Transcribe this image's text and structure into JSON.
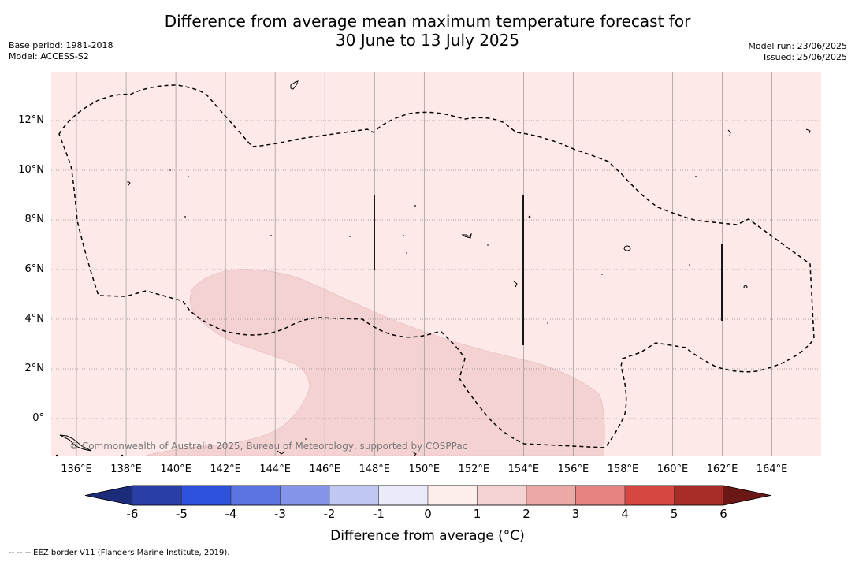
{
  "header": {
    "title_line1": "Difference from average mean maximum temperature forecast for",
    "title_line2": "30 June to 13 July 2025",
    "base_period": "Base period: 1981-2018",
    "model": "Model: ACCESS-S2",
    "model_run": "Model run: 23/06/2025",
    "issued": "Issued: 25/06/2025"
  },
  "map": {
    "lon_labels": [
      "136°E",
      "138°E",
      "140°E",
      "142°E",
      "144°E",
      "146°E",
      "148°E",
      "150°E",
      "152°E",
      "154°E",
      "156°E",
      "158°E",
      "160°E",
      "162°E",
      "164°E"
    ],
    "lat_labels": [
      "12°N",
      "10°N",
      "8°N",
      "6°N",
      "4°N",
      "2°N",
      "0°"
    ],
    "copyright": "© Commonwealth of Australia 2025, Bureau of Meteorology, supported by COSPPac",
    "colors": {
      "background_anomaly_0_1": "#fce9e8",
      "anomaly_1_2": "#f4d2d2",
      "eez_border": "#000000"
    }
  },
  "colorbar": {
    "ticks": [
      "-6",
      "-5",
      "-4",
      "-3",
      "-2",
      "-1",
      "0",
      "1",
      "2",
      "3",
      "4",
      "5",
      "6"
    ],
    "colors": [
      "#1d2c7a",
      "#2a3ea8",
      "#2f52dc",
      "#5a73e0",
      "#8394ea",
      "#c0c7f3",
      "#e9ebfb",
      "#fdeeec",
      "#f5d3d2",
      "#eca8a5",
      "#e4837f",
      "#d6473f",
      "#a72b27",
      "#6b1715"
    ],
    "label": "Difference from average (°C)"
  },
  "footer": {
    "legend": "--  --  -- EEZ border V11 (Flanders Marine Institute, 2019)."
  }
}
